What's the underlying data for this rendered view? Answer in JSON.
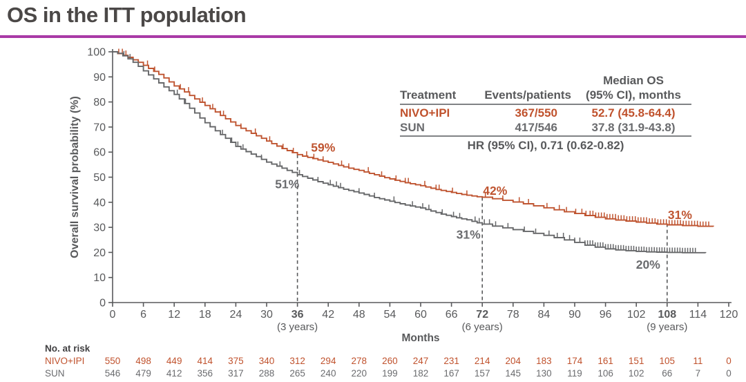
{
  "slide": {
    "title": "OS in the ITT population",
    "accent_color": "#A93AA6",
    "background_color": "#FFFFFF",
    "title_color": "#4B4847"
  },
  "stats_table": {
    "headers": {
      "treatment": "Treatment",
      "events": "Events/patients",
      "median_line1": "Median OS",
      "median_line2": "(95% CI), months"
    },
    "rows": [
      {
        "treatment": "NIVO+IPI",
        "events": "367/550",
        "median": "52.7 (45.8-64.4)",
        "color": "#C0522D"
      },
      {
        "treatment": "SUN",
        "events": "417/546",
        "median": "37.8 (31.9-43.8)",
        "color": "#6A6B6E"
      }
    ],
    "footer": "HR (95% CI), 0.71 (0.62-0.82)"
  },
  "chart_data": {
    "type": "line",
    "subtype": "kaplan-meier-step",
    "title": "",
    "xlabel": "Months",
    "ylabel": "Overall survival probability (%)",
    "xlim": [
      0,
      120
    ],
    "ylim": [
      0,
      100
    ],
    "x_ticks": [
      0,
      6,
      12,
      18,
      24,
      30,
      36,
      42,
      48,
      54,
      60,
      66,
      72,
      78,
      84,
      90,
      96,
      102,
      108,
      114,
      120
    ],
    "x_ticks_bold": [
      36,
      72,
      108
    ],
    "x_tick_sublabels": [
      {
        "month": 36,
        "label": "(3 years)"
      },
      {
        "month": 72,
        "label": "(6 years)"
      },
      {
        "month": 108,
        "label": "(9 years)"
      }
    ],
    "y_ticks": [
      0,
      10,
      20,
      30,
      40,
      50,
      60,
      70,
      80,
      90,
      100
    ],
    "axis_color": "#58595B",
    "grid": false,
    "dashed_milestones": [
      {
        "month": 36,
        "top_pct": 59
      },
      {
        "month": 72,
        "top_pct": 42
      },
      {
        "month": 108,
        "top_pct": 31.5
      }
    ],
    "annotations": [
      {
        "text": "59%",
        "month": 41.0,
        "pct": 61.8,
        "color": "#BF5430"
      },
      {
        "text": "51%",
        "month": 34.0,
        "pct": 47.2,
        "color": "#6A6B6E"
      },
      {
        "text": "42%",
        "month": 74.5,
        "pct": 44.6,
        "color": "#BF5430"
      },
      {
        "text": "31%",
        "month": 69.3,
        "pct": 27.2,
        "color": "#6A6B6E"
      },
      {
        "text": "31%",
        "month": 110.5,
        "pct": 35.0,
        "color": "#BF5430"
      },
      {
        "text": "20%",
        "month": 104.3,
        "pct": 15.2,
        "color": "#6A6B6E"
      }
    ],
    "series": [
      {
        "name": "NIVO+IPI",
        "color": "#BF5430",
        "milestone_pcts": {
          "36": 59,
          "72": 42,
          "108": 31
        },
        "median_months": 52.7,
        "points": [
          [
            0,
            100
          ],
          [
            1,
            99.3
          ],
          [
            2,
            98.6
          ],
          [
            3,
            97.8
          ],
          [
            4,
            96.8
          ],
          [
            5,
            95.8
          ],
          [
            6,
            94.6
          ],
          [
            7,
            93.4
          ],
          [
            8,
            92.2
          ],
          [
            9,
            91.0
          ],
          [
            10,
            89.6
          ],
          [
            11,
            88.0
          ],
          [
            12,
            86.4
          ],
          [
            13,
            85.2
          ],
          [
            14,
            84.0
          ],
          [
            15,
            82.6
          ],
          [
            16,
            81.2
          ],
          [
            17,
            79.9
          ],
          [
            18,
            78.6
          ],
          [
            19,
            77.3
          ],
          [
            20,
            76.0
          ],
          [
            21,
            74.6
          ],
          [
            22,
            73.3
          ],
          [
            23,
            72.0
          ],
          [
            24,
            70.6
          ],
          [
            25,
            69.5
          ],
          [
            26,
            68.5
          ],
          [
            27,
            67.5
          ],
          [
            28,
            66.5
          ],
          [
            29,
            65.5
          ],
          [
            30,
            64.4
          ],
          [
            31,
            63.4
          ],
          [
            32,
            62.4
          ],
          [
            33,
            61.4
          ],
          [
            34,
            60.6
          ],
          [
            35,
            59.8
          ],
          [
            36,
            59.0
          ],
          [
            37,
            58.4
          ],
          [
            38,
            57.9
          ],
          [
            39,
            57.4
          ],
          [
            40,
            56.9
          ],
          [
            41,
            56.4
          ],
          [
            42,
            55.9
          ],
          [
            43,
            55.3
          ],
          [
            44,
            54.7
          ],
          [
            45,
            54.1
          ],
          [
            46,
            53.6
          ],
          [
            47,
            53.1
          ],
          [
            48,
            52.7
          ],
          [
            49,
            52.1
          ],
          [
            50,
            51.5
          ],
          [
            51,
            51.0
          ],
          [
            52,
            50.4
          ],
          [
            53,
            49.8
          ],
          [
            54,
            49.3
          ],
          [
            55,
            48.8
          ],
          [
            56,
            48.3
          ],
          [
            57,
            47.8
          ],
          [
            58,
            47.4
          ],
          [
            59,
            47.0
          ],
          [
            60,
            46.6
          ],
          [
            61,
            46.1
          ],
          [
            62,
            45.6
          ],
          [
            63,
            45.1
          ],
          [
            64,
            44.7
          ],
          [
            65,
            44.3
          ],
          [
            66,
            43.9
          ],
          [
            67,
            43.5
          ],
          [
            68,
            43.1
          ],
          [
            69,
            42.8
          ],
          [
            70,
            42.5
          ],
          [
            71,
            42.2
          ],
          [
            72,
            42.0
          ],
          [
            74,
            41.4
          ],
          [
            76,
            40.8
          ],
          [
            78,
            40.1
          ],
          [
            80,
            39.4
          ],
          [
            82,
            38.6
          ],
          [
            84,
            37.8
          ],
          [
            86,
            37.0
          ],
          [
            88,
            36.2
          ],
          [
            90,
            35.5
          ],
          [
            92,
            34.7
          ],
          [
            94,
            34.0
          ],
          [
            96,
            33.4
          ],
          [
            98,
            32.9
          ],
          [
            100,
            32.5
          ],
          [
            102,
            32.1
          ],
          [
            104,
            31.7
          ],
          [
            106,
            31.3
          ],
          [
            108,
            31.0
          ],
          [
            111,
            30.7
          ],
          [
            114,
            30.4
          ],
          [
            117,
            30.3
          ]
        ],
        "censors_sparse": [
          1.2,
          1.9,
          2.6,
          6.8,
          8.2,
          13.2,
          14.8,
          17.5,
          19.5,
          21.0,
          21.6,
          25.0,
          27.8,
          30.6,
          33.2,
          35.2,
          37.8,
          39.2,
          41.0,
          44.6,
          46.0,
          49.8,
          52.4,
          55.2,
          57.0,
          57.6,
          60.8,
          63.0,
          63.6,
          66.2,
          69.0,
          72.6,
          76.0,
          79.2,
          81.0,
          84.6,
          87.0,
          88.4,
          90.2,
          91.4,
          92.2
        ],
        "censors_dense": {
          "from": 93,
          "to": 116.5,
          "step": 0.55
        }
      },
      {
        "name": "SUN",
        "color": "#666769",
        "milestone_pcts": {
          "36": 51,
          "72": 31,
          "108": 20
        },
        "median_months": 37.8,
        "points": [
          [
            0,
            100
          ],
          [
            1,
            99.4
          ],
          [
            2,
            98.4
          ],
          [
            3,
            97.2
          ],
          [
            4,
            95.8
          ],
          [
            5,
            94.2
          ],
          [
            6,
            92.4
          ],
          [
            7,
            90.8
          ],
          [
            8,
            89.2
          ],
          [
            9,
            87.6
          ],
          [
            10,
            86.0
          ],
          [
            11,
            84.5
          ],
          [
            12,
            83.0
          ],
          [
            13,
            81.2
          ],
          [
            14,
            79.4
          ],
          [
            15,
            77.5
          ],
          [
            16,
            75.6
          ],
          [
            17,
            73.6
          ],
          [
            18,
            71.7
          ],
          [
            19,
            70.1
          ],
          [
            20,
            68.5
          ],
          [
            21,
            67.0
          ],
          [
            22,
            65.5
          ],
          [
            23,
            63.9
          ],
          [
            24,
            62.3
          ],
          [
            25,
            61.2
          ],
          [
            26,
            60.2
          ],
          [
            27,
            59.2
          ],
          [
            28,
            58.2
          ],
          [
            29,
            57.1
          ],
          [
            30,
            56.0
          ],
          [
            31,
            55.2
          ],
          [
            32,
            54.4
          ],
          [
            33,
            53.6
          ],
          [
            34,
            52.7
          ],
          [
            35,
            51.9
          ],
          [
            36,
            51.0
          ],
          [
            37,
            50.3
          ],
          [
            38,
            49.6
          ],
          [
            39,
            48.9
          ],
          [
            40,
            48.2
          ],
          [
            41,
            47.6
          ],
          [
            42,
            47.0
          ],
          [
            43,
            46.4
          ],
          [
            44,
            45.8
          ],
          [
            45,
            45.2
          ],
          [
            46,
            44.7
          ],
          [
            47,
            44.2
          ],
          [
            48,
            43.7
          ],
          [
            49,
            43.1
          ],
          [
            50,
            42.5
          ],
          [
            51,
            41.9
          ],
          [
            52,
            41.4
          ],
          [
            53,
            40.9
          ],
          [
            54,
            40.4
          ],
          [
            55,
            39.9
          ],
          [
            56,
            39.4
          ],
          [
            57,
            38.9
          ],
          [
            58,
            38.5
          ],
          [
            59,
            38.1
          ],
          [
            60,
            37.7
          ],
          [
            61,
            37.1
          ],
          [
            62,
            36.5
          ],
          [
            63,
            35.9
          ],
          [
            64,
            35.3
          ],
          [
            65,
            34.8
          ],
          [
            66,
            34.3
          ],
          [
            67,
            33.8
          ],
          [
            68,
            33.4
          ],
          [
            69,
            33.0
          ],
          [
            70,
            32.4
          ],
          [
            71,
            31.8
          ],
          [
            72,
            31.3
          ],
          [
            74,
            30.5
          ],
          [
            76,
            29.8
          ],
          [
            78,
            29.1
          ],
          [
            80,
            28.4
          ],
          [
            82,
            27.6
          ],
          [
            84,
            26.8
          ],
          [
            86,
            25.9
          ],
          [
            88,
            25.0
          ],
          [
            90,
            24.0
          ],
          [
            92,
            22.9
          ],
          [
            94,
            22.1
          ],
          [
            96,
            21.4
          ],
          [
            98,
            21.0
          ],
          [
            100,
            20.7
          ],
          [
            102,
            20.4
          ],
          [
            104,
            20.2
          ],
          [
            106,
            20.1
          ],
          [
            108,
            20.0
          ],
          [
            111,
            19.9
          ],
          [
            115.5,
            19.8
          ]
        ],
        "censors_sparse": [
          2.2,
          3.4,
          12.6,
          14.2,
          16.0,
          17.0,
          21.4,
          23.2,
          24.4,
          25.4,
          29.0,
          32.6,
          36.4,
          40.0,
          42.4,
          43.6,
          44.4,
          48.0,
          51.0,
          54.8,
          58.4,
          60.4,
          61.6,
          64.2,
          66.4,
          67.6,
          70.6,
          71.4,
          72.4,
          73.4,
          74.6,
          77.0,
          80.2,
          82.4,
          85.0,
          86.6,
          87.8,
          89.0,
          90.0,
          91.0
        ],
        "censors_dense": {
          "from": 92,
          "to": 113.5,
          "step": 0.5
        }
      }
    ]
  },
  "at_risk": {
    "header": "No. at risk",
    "months": [
      0,
      6,
      12,
      18,
      24,
      30,
      36,
      42,
      48,
      54,
      60,
      66,
      72,
      78,
      84,
      90,
      96,
      102,
      108,
      114,
      120
    ],
    "rows": [
      {
        "label": "NIVO+IPI",
        "color": "#C0522D",
        "values": [
          550,
          498,
          449,
          414,
          375,
          340,
          312,
          294,
          278,
          260,
          247,
          231,
          214,
          204,
          183,
          174,
          161,
          151,
          105,
          11,
          0
        ]
      },
      {
        "label": "SUN",
        "color": "#6A6B6E",
        "values": [
          546,
          479,
          412,
          356,
          317,
          288,
          265,
          240,
          220,
          199,
          182,
          167,
          157,
          145,
          130,
          119,
          106,
          102,
          66,
          7,
          0
        ]
      }
    ]
  }
}
